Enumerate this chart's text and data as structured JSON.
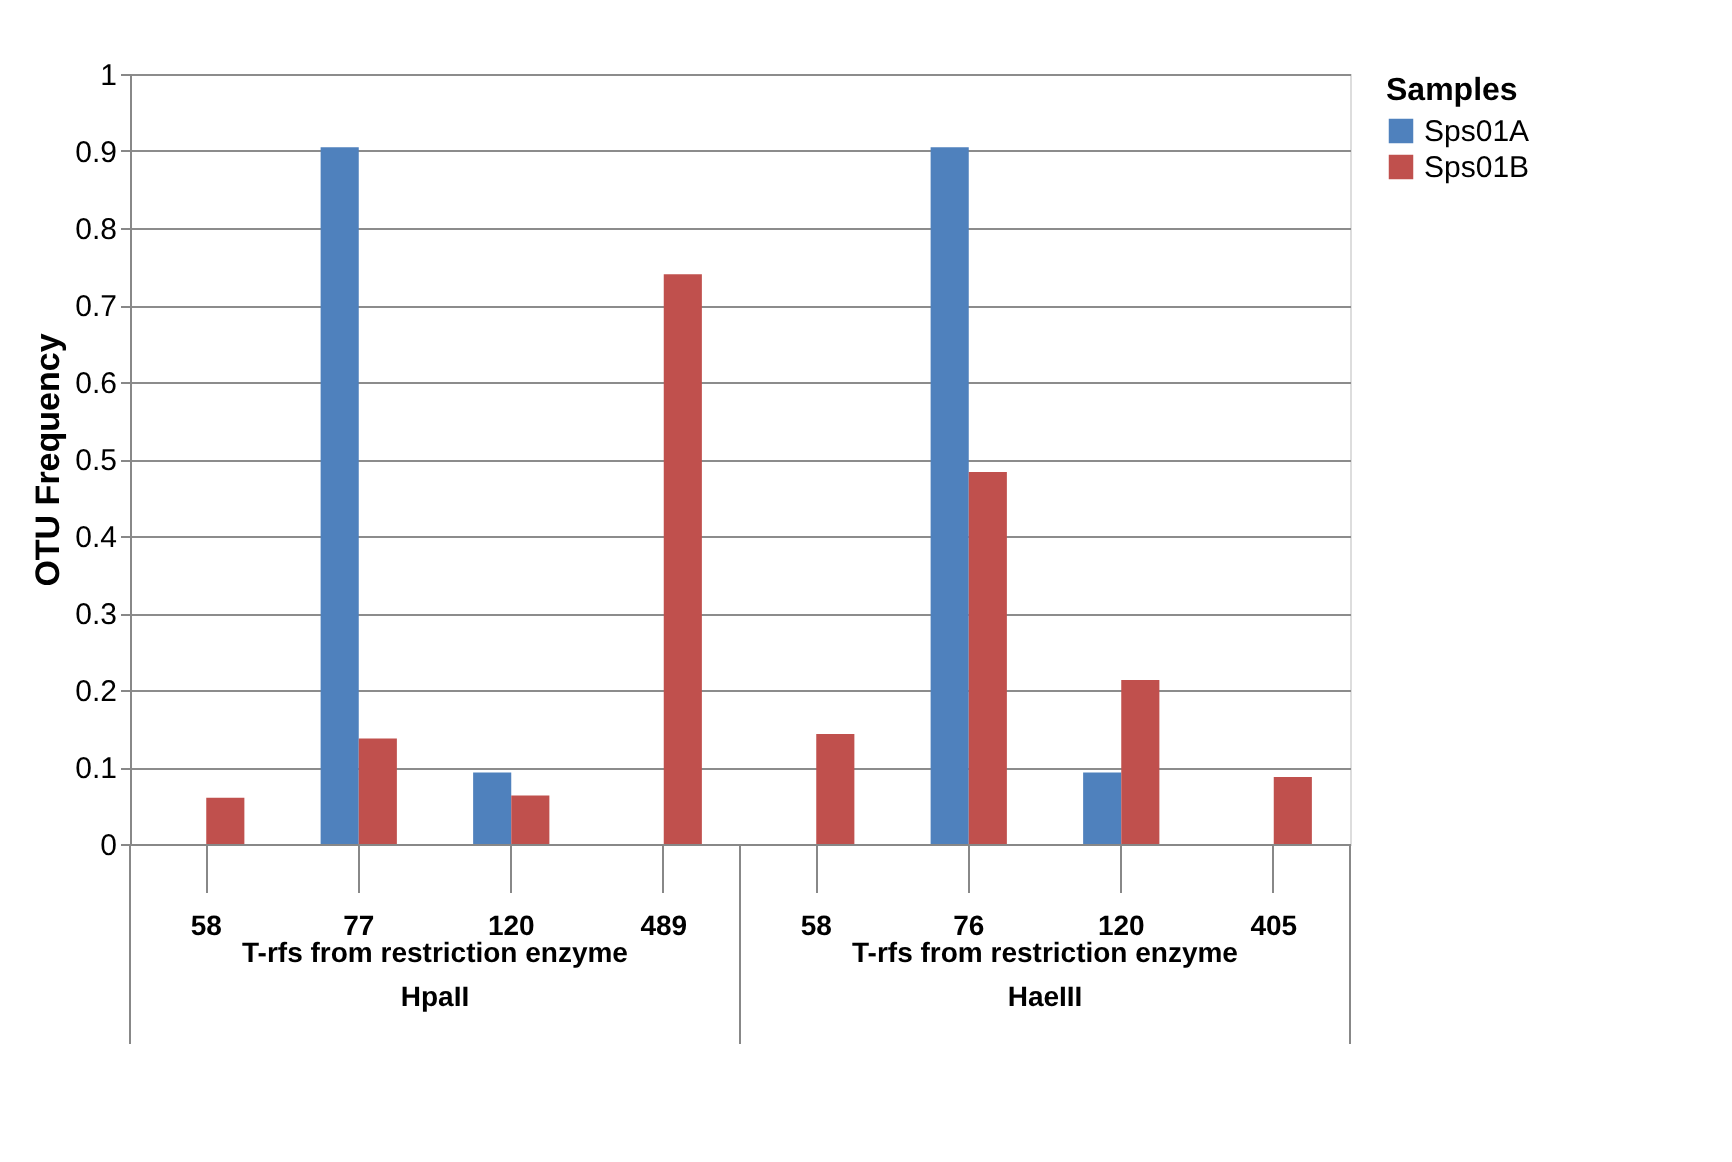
{
  "chart_data": {
    "type": "bar",
    "ylabel": "OTU Frequency",
    "legend_title": "Samples",
    "legend": "right",
    "categories": [
      "58",
      "77",
      "120",
      "489",
      "58",
      "76",
      "120",
      "405"
    ],
    "series": [
      {
        "name": "Sps01A",
        "color": "#4f81bd",
        "values": [
          0,
          0.905,
          0.093,
          0,
          0,
          0.905,
          0.093,
          0
        ]
      },
      {
        "name": "Sps01B",
        "color": "#c0504d",
        "values": [
          0.06,
          0.137,
          0.063,
          0.74,
          0.143,
          0.483,
          0.213,
          0.087
        ]
      }
    ],
    "ylim": [
      0,
      1
    ],
    "yticks": [
      0,
      0.1,
      0.2,
      0.3,
      0.4,
      0.5,
      0.6,
      0.7,
      0.8,
      0.9,
      1
    ],
    "grid": "y",
    "annotations": [
      "T-rfs from restriction enzyme HpaII",
      "T-rfs from restriction enzyme HaeIII"
    ]
  }
}
